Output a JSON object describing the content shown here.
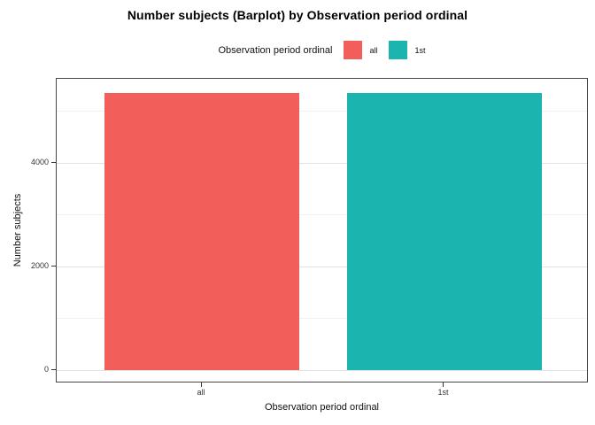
{
  "title": "Number subjects (Barplot) by Observation period ordinal",
  "legend": {
    "title": "Observation period ordinal",
    "items": [
      {
        "label": "all",
        "color": "#F25F5A"
      },
      {
        "label": "1st",
        "color": "#1CB4AF"
      }
    ]
  },
  "chart_data": {
    "type": "bar",
    "title": "Number subjects (Barplot) by Observation period ordinal",
    "xlabel": "Observation period ordinal",
    "ylabel": "Number subjects",
    "categories": [
      "all",
      "1st"
    ],
    "values": [
      5350,
      5350
    ],
    "bar_colors": [
      "#F25F5A",
      "#1CB4AF"
    ],
    "ylim": [
      0,
      5620
    ],
    "y_ticks": [
      0,
      2000,
      4000
    ],
    "y_minor_ticks": [
      1000,
      3000,
      5000
    ],
    "grid": true,
    "legend_position": "top",
    "legend_title": "Observation period ordinal",
    "legend_entries": [
      "all",
      "1st"
    ]
  },
  "colors": {
    "panel_border": "#454545",
    "grid_major": "#e3e3e3",
    "grid_minor": "#f1f1f1",
    "tick": "#333333",
    "background": "#ffffff"
  }
}
